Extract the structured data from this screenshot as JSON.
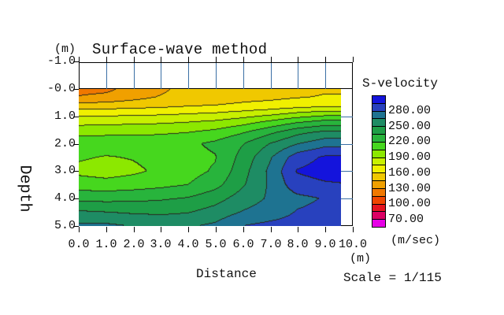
{
  "title": "Surface-wave method",
  "axes": {
    "depth_label": "Depth",
    "depth_unit": "(m)",
    "depth_ticks": [
      "-1.0",
      "-0.0",
      "1.0",
      "2.0",
      "3.0",
      "4.0",
      "5.0"
    ],
    "distance_label": "Distance",
    "distance_unit": "(m)",
    "distance_ticks": [
      "0.0",
      "1.0",
      "2.0",
      "3.0",
      "4.0",
      "5.0",
      "6.0",
      "7.0",
      "8.0",
      "9.0",
      "10.0"
    ]
  },
  "legend": {
    "title": "S-velocity",
    "unit": "(m/sec)",
    "labels": [
      "280.00",
      "250.00",
      "220.00",
      "190.00",
      "160.00",
      "130.00",
      "100.00",
      "70.00"
    ]
  },
  "footer": {
    "scale_text": "Scale = 1/115"
  },
  "colors": {
    "marker_blue": "#3A6FA5",
    "contour_line": "#28281E",
    "frame_black": "#000000",
    "palette_low_to_high": [
      "#E600E6",
      "#DC0064",
      "#E61420",
      "#F04600",
      "#F07800",
      "#F0A000",
      "#F0C800",
      "#F0F000",
      "#C8F000",
      "#8CE800",
      "#46D71E",
      "#28B43C",
      "#1E9E46",
      "#1E8C64",
      "#1E7391",
      "#2841BE",
      "#1414DC"
    ]
  },
  "chart_data": {
    "type": "heatmap",
    "title": "Surface-wave method",
    "xlabel": "Distance (m)",
    "ylabel": "Depth (m)",
    "legend_title": "S-velocity (m/sec)",
    "x_range_m": [
      0,
      10
    ],
    "depth_range_m": [
      -1,
      5
    ],
    "fill_x_max_m": 9.6,
    "contour_interval_mps": 15,
    "value_range": [
      55,
      310
    ],
    "labeled_levels_mps": [
      280,
      250,
      220,
      190,
      160,
      130,
      100,
      70
    ],
    "receiver_marks_x_m": [
      1,
      2,
      3,
      4,
      5,
      6,
      7,
      8,
      9
    ],
    "right_tick_depths_m": [
      1,
      2,
      3,
      4
    ],
    "x_m": [
      0,
      1,
      2,
      3,
      4,
      5,
      6,
      7,
      8,
      9,
      9.6
    ],
    "depth_m": [
      0,
      0.3,
      0.6,
      0.9,
      1.2,
      1.6,
      2.0,
      2.5,
      3.0,
      3.5,
      4.0,
      4.5,
      5.0
    ],
    "values_mps": [
      [
        124,
        126,
        136,
        142,
        150,
        152,
        153,
        154,
        156,
        158,
        158
      ],
      [
        131,
        134,
        140,
        146,
        151,
        154,
        156,
        157,
        159,
        161,
        161
      ],
      [
        150,
        151,
        153,
        155,
        158,
        160,
        162,
        164,
        167,
        170,
        170
      ],
      [
        169,
        170,
        171,
        172,
        174,
        176,
        180,
        185,
        192,
        197,
        197
      ],
      [
        184,
        185,
        186,
        187,
        189,
        192,
        198,
        207,
        217,
        224,
        224
      ],
      [
        201,
        202,
        202,
        203,
        205,
        210,
        219,
        232,
        246,
        254,
        254
      ],
      [
        214,
        213,
        213,
        214,
        217,
        223,
        234,
        250,
        264,
        274,
        274
      ],
      [
        207,
        204,
        206,
        210,
        215,
        219,
        240,
        263,
        288,
        297,
        297
      ],
      [
        201,
        198,
        202,
        208,
        214,
        222,
        244,
        268,
        296,
        301,
        302
      ],
      [
        213,
        211,
        213,
        216,
        220,
        230,
        248,
        267,
        289,
        293,
        294
      ],
      [
        230,
        230,
        231,
        233,
        236,
        244,
        257,
        267,
        276,
        281,
        282
      ],
      [
        252,
        250,
        248,
        247,
        249,
        256,
        266,
        272,
        281,
        284,
        284
      ],
      [
        268,
        268,
        264,
        262,
        263,
        268,
        280,
        284,
        286,
        288,
        288
      ]
    ]
  }
}
